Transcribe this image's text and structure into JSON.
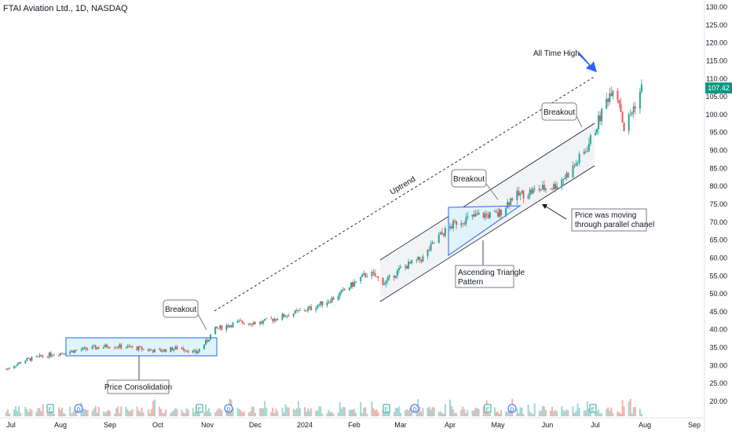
{
  "header": {
    "title": "FTAI Aviation Ltd., 1D, NASDAQ"
  },
  "price_tag": "107.42",
  "chart_data": {
    "type": "candlestick",
    "title": "FTAI Aviation Ltd., 1D, NASDAQ",
    "ylim": [
      18,
      132
    ],
    "y_ticks": [
      "20.00",
      "25.00",
      "30.00",
      "35.00",
      "40.00",
      "45.00",
      "50.00",
      "55.00",
      "60.00",
      "65.00",
      "70.00",
      "75.00",
      "80.00",
      "85.00",
      "90.00",
      "95.00",
      "100.00",
      "105.00",
      "110.00",
      "115.00",
      "120.00",
      "125.00",
      "130.00"
    ],
    "x_ticks": [
      "Jul",
      "Aug",
      "Sep",
      "Oct",
      "Nov",
      "Dec",
      "2024",
      "Feb",
      "Mar",
      "Apr",
      "May",
      "Jun",
      "Jul",
      "Aug",
      "Sep"
    ],
    "last_price": 107.42,
    "price_path": [
      [
        "2023-06-28",
        29
      ],
      [
        "2023-07-10",
        31.5
      ],
      [
        "2023-07-25",
        33
      ],
      [
        "2023-08-01",
        33.5
      ],
      [
        "2023-08-15",
        34.5
      ],
      [
        "2023-09-01",
        35.5
      ],
      [
        "2023-09-15",
        35
      ],
      [
        "2023-10-01",
        34
      ],
      [
        "2023-10-15",
        35
      ],
      [
        "2023-10-25",
        33.5
      ],
      [
        "2023-11-01",
        37
      ],
      [
        "2023-11-05",
        40
      ],
      [
        "2023-11-20",
        42
      ],
      [
        "2023-12-05",
        42
      ],
      [
        "2023-12-20",
        44
      ],
      [
        "2024-01-05",
        46
      ],
      [
        "2024-01-20",
        49
      ],
      [
        "2024-02-01",
        53
      ],
      [
        "2024-02-10",
        56
      ],
      [
        "2024-02-20",
        53
      ],
      [
        "2024-03-01",
        57
      ],
      [
        "2024-03-15",
        60
      ],
      [
        "2024-03-25",
        66
      ],
      [
        "2024-04-05",
        70
      ],
      [
        "2024-04-20",
        72
      ],
      [
        "2024-05-01",
        72
      ],
      [
        "2024-05-10",
        77
      ],
      [
        "2024-05-25",
        79
      ],
      [
        "2024-06-05",
        80
      ],
      [
        "2024-06-15",
        84
      ],
      [
        "2024-06-25",
        90
      ],
      [
        "2024-07-01",
        96
      ],
      [
        "2024-07-08",
        104
      ],
      [
        "2024-07-12",
        108
      ],
      [
        "2024-07-16",
        104
      ],
      [
        "2024-07-19",
        96
      ],
      [
        "2024-07-25",
        102
      ],
      [
        "2024-07-30",
        107.42
      ]
    ],
    "event_markers": [
      "E",
      "D",
      "E",
      "D",
      "E",
      "D",
      "E",
      "D",
      "E"
    ],
    "annotations": [
      "All Time High",
      "Breakout",
      "Breakout",
      "Breakout",
      "Uptrend",
      "Price Consolidation",
      "Ascending Triangle Pattern",
      "Price was moving through parallel chanel"
    ]
  },
  "annotations": {
    "ath": "All Time High",
    "breakout1": "Breakout",
    "breakout2": "Breakout",
    "breakout3": "Breakout",
    "uptrend": "Uptrend",
    "consolidation": "Price Consolidation",
    "triangle_l1": "Ascending Triangle",
    "triangle_l2": "Pattern",
    "channel_l1": "Price was moving",
    "channel_l2": "through parallel chanel"
  },
  "colors": {
    "up": "#26a69a",
    "down": "#ef5350",
    "accent": "#2962ff",
    "price_tag": "#089981"
  }
}
